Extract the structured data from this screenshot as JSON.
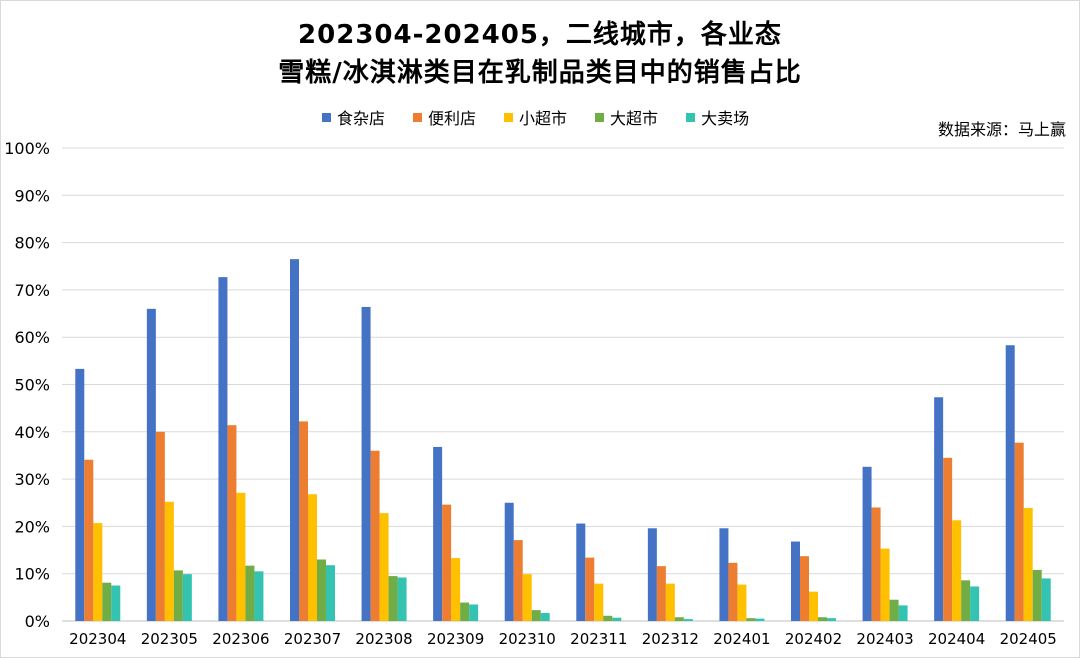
{
  "chart_data": {
    "type": "bar",
    "title": [
      "202304-202405，二线城市，各业态",
      "雪糕/冰淇淋类目在乳制品类目中的销售占比"
    ],
    "source": "数据来源：马上赢",
    "ylim": [
      0,
      100
    ],
    "yticks": [
      "0%",
      "10%",
      "20%",
      "30%",
      "40%",
      "50%",
      "60%",
      "70%",
      "80%",
      "90%",
      "100%"
    ],
    "grid": true,
    "legend_position": "top",
    "categories": [
      "202304",
      "202305",
      "202306",
      "202307",
      "202308",
      "202309",
      "202310",
      "202311",
      "202312",
      "202401",
      "202402",
      "202403",
      "202404",
      "202405"
    ],
    "series": [
      {
        "name": "食杂店",
        "color": "#4472c4",
        "values": [
          53.3,
          66.0,
          72.7,
          76.5,
          66.4,
          36.8,
          25.0,
          20.6,
          19.6,
          19.6,
          16.8,
          32.6,
          47.3,
          58.3
        ]
      },
      {
        "name": "便利店",
        "color": "#ed7d31",
        "values": [
          34.1,
          40.0,
          41.4,
          42.2,
          36.0,
          24.6,
          17.1,
          13.4,
          11.6,
          12.3,
          13.7,
          24.0,
          34.5,
          37.7
        ]
      },
      {
        "name": "小超市",
        "color": "#ffc000",
        "values": [
          20.7,
          25.2,
          27.1,
          26.8,
          22.8,
          13.3,
          9.9,
          7.9,
          7.9,
          7.7,
          6.2,
          15.3,
          21.3,
          23.9
        ]
      },
      {
        "name": "大超市",
        "color": "#70ad47",
        "values": [
          8.1,
          10.7,
          11.7,
          13.0,
          9.5,
          3.9,
          2.3,
          1.1,
          0.8,
          0.6,
          0.8,
          4.5,
          8.6,
          10.8
        ]
      },
      {
        "name": "大卖场",
        "color": "#33c3b0",
        "values": [
          7.5,
          9.9,
          10.5,
          11.8,
          9.2,
          3.5,
          1.7,
          0.7,
          0.4,
          0.5,
          0.6,
          3.3,
          7.3,
          9.0
        ]
      }
    ]
  }
}
